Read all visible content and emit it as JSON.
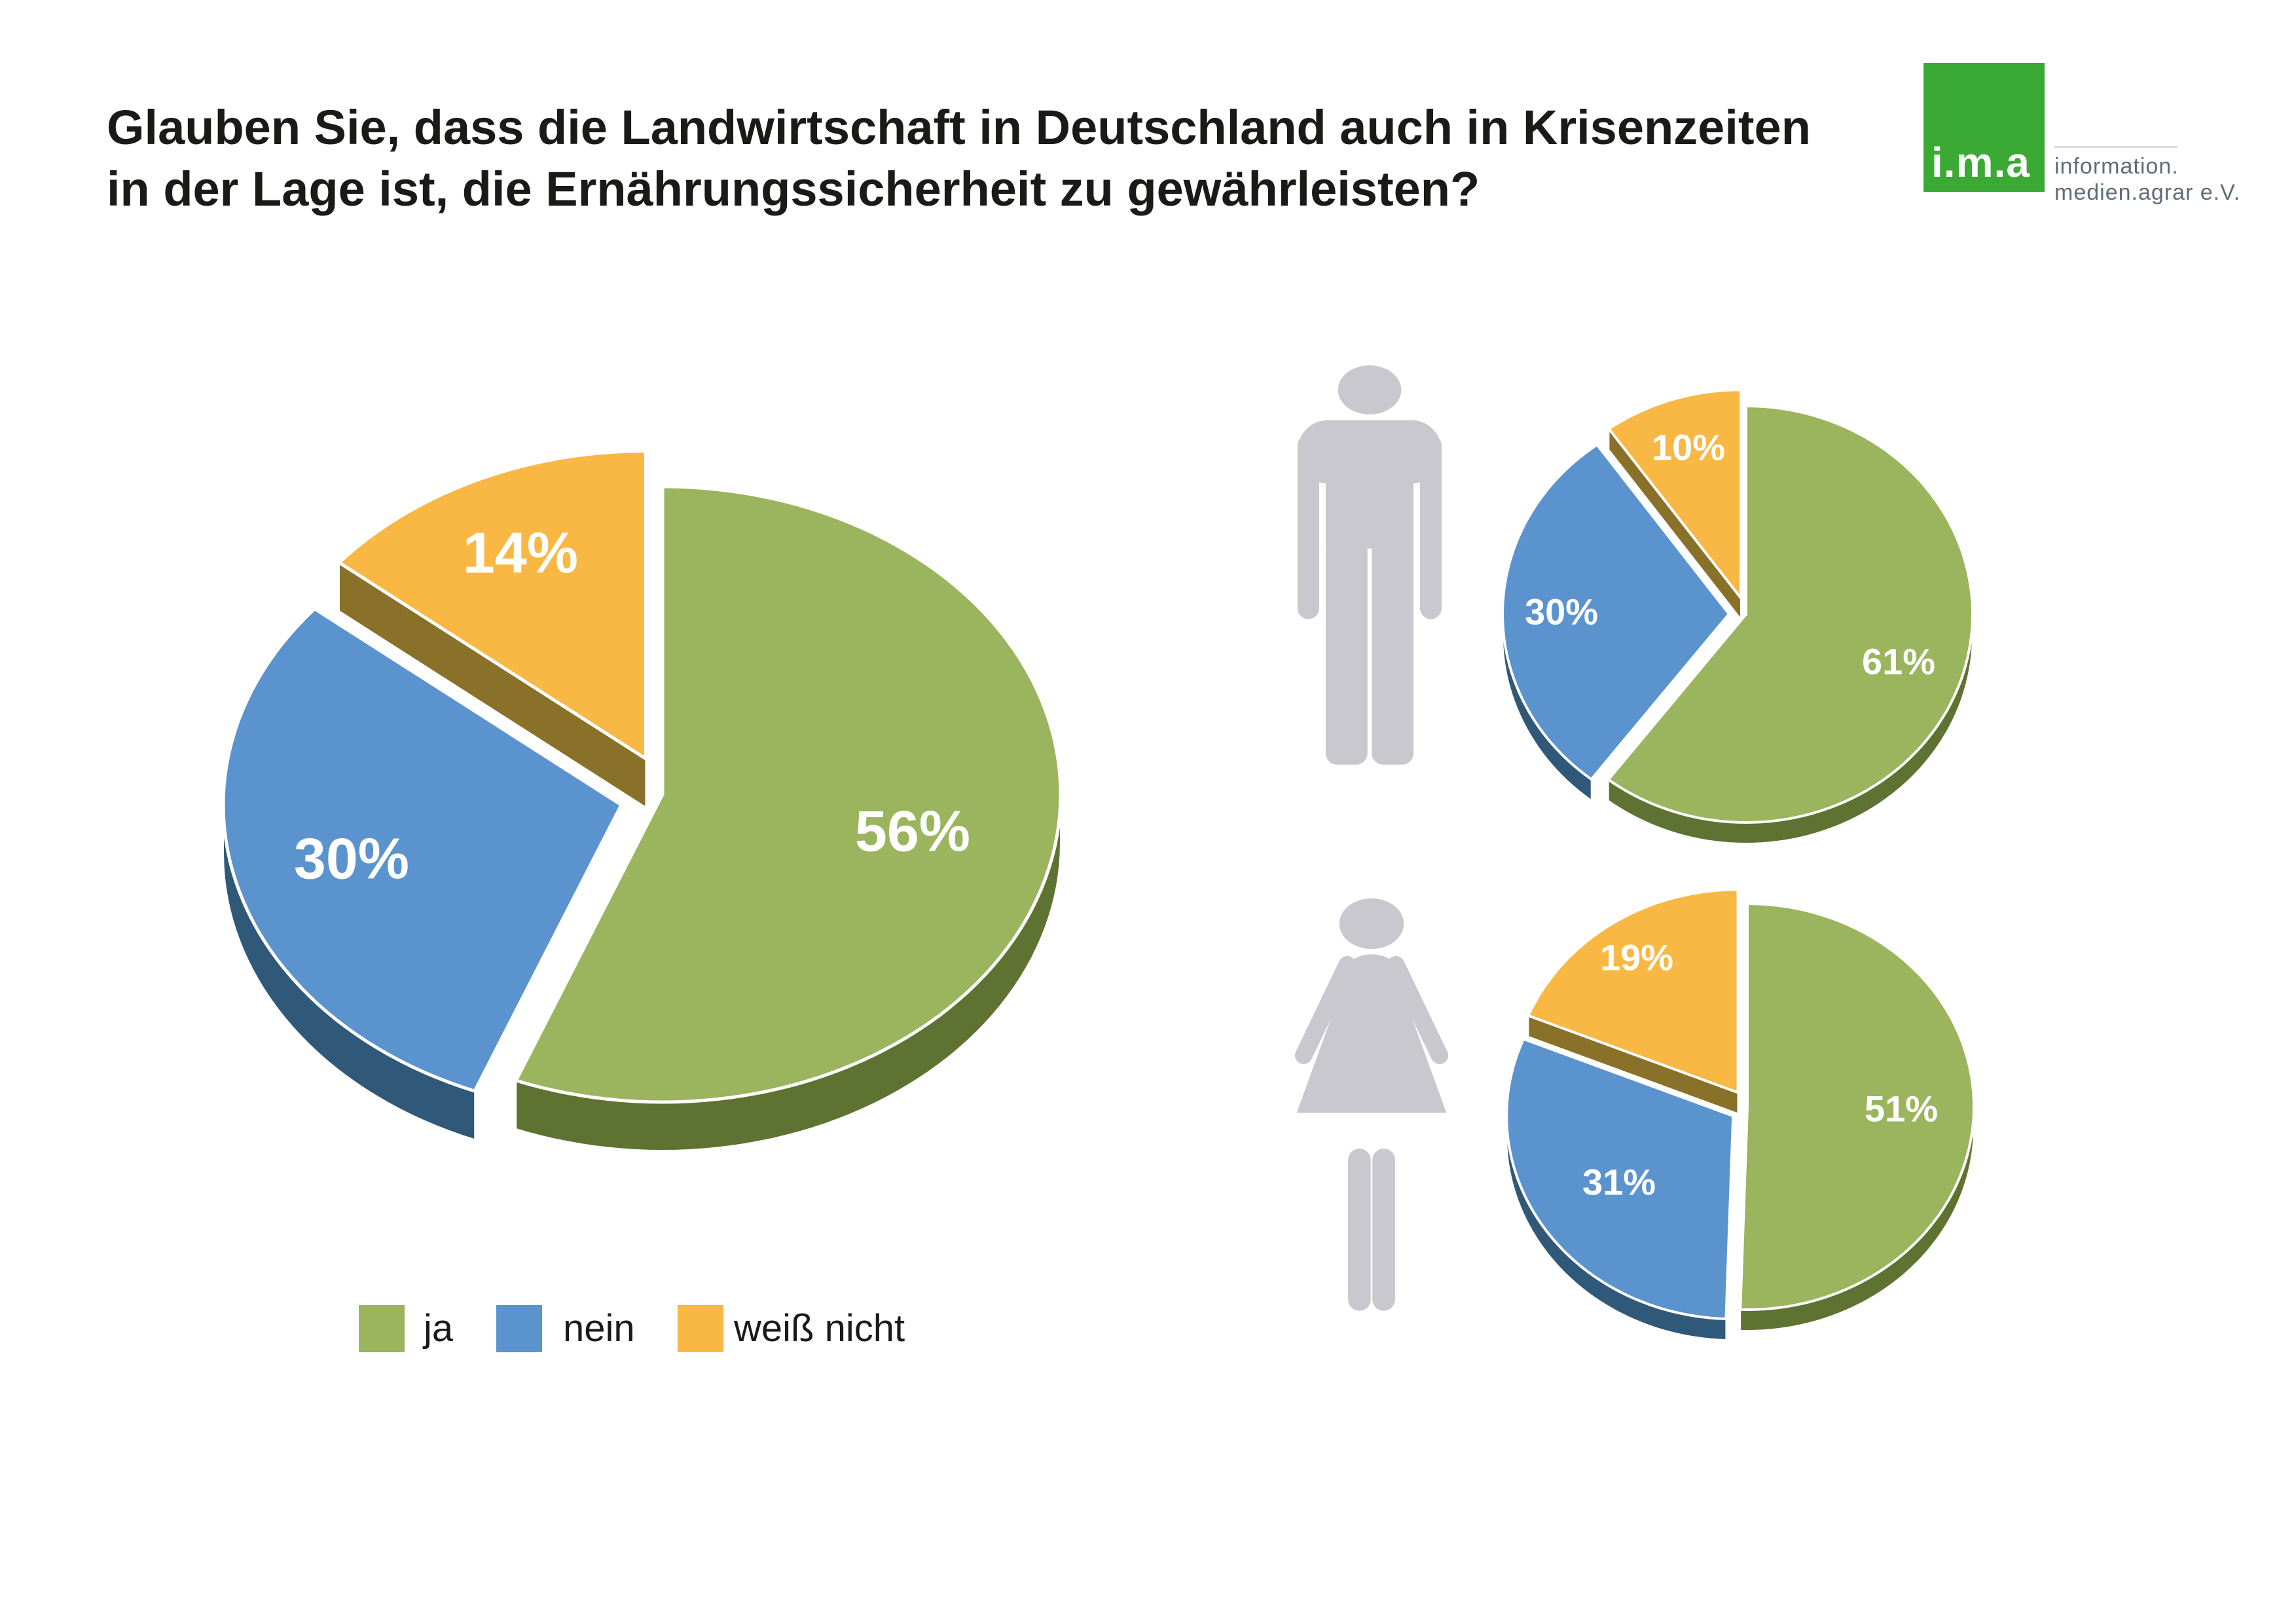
{
  "title": {
    "line1": "Glauben Sie, dass die Landwirtschaft in Deutschland auch in Krisenzeiten",
    "line2": "in der Lage ist, die Ernährungssicherheit zu gewährleisten?"
  },
  "logo": {
    "brand": "i.m.a",
    "line1": "information.",
    "line2": "medien.agrar e.V.",
    "square_color": "#3aaa35",
    "text_color": "#5f6c79"
  },
  "legend": [
    {
      "label": "ja",
      "color": "#9bb45e"
    },
    {
      "label": "nein",
      "color": "#5b93ce"
    },
    {
      "label": "weiß nicht",
      "color": "#f8b843"
    }
  ],
  "colors": {
    "slice_top": [
      "#9bb45e",
      "#5b93ce",
      "#f8b843"
    ],
    "slice_side": [
      "#5e7331",
      "#305878",
      "#8a7129"
    ],
    "icon_gray": "#c8c8ce",
    "label_text": "#ffffff",
    "title_text": "#1a1a18"
  },
  "chart_data": [
    {
      "type": "pie",
      "name": "overall",
      "style": "3d-exploded",
      "start": "12-o'clock",
      "direction": "clockwise",
      "categories": [
        "ja",
        "nein",
        "weiß nicht"
      ],
      "values": [
        56,
        30,
        14
      ],
      "labels": [
        "56%",
        "30%",
        "14%"
      ],
      "unit": "%"
    },
    {
      "type": "pie",
      "name": "male",
      "style": "3d-exploded",
      "start": "12-o'clock",
      "direction": "clockwise",
      "categories": [
        "ja",
        "nein",
        "weiß nicht"
      ],
      "values": [
        61,
        30,
        10
      ],
      "labels": [
        "61%",
        "30%",
        "10%"
      ],
      "unit": "%"
    },
    {
      "type": "pie",
      "name": "female",
      "style": "3d-exploded",
      "start": "12-o'clock",
      "direction": "clockwise",
      "categories": [
        "ja",
        "nein",
        "weiß nicht"
      ],
      "values": [
        51,
        31,
        19
      ],
      "labels": [
        "51%",
        "31%",
        "19%"
      ],
      "unit": "%"
    }
  ]
}
